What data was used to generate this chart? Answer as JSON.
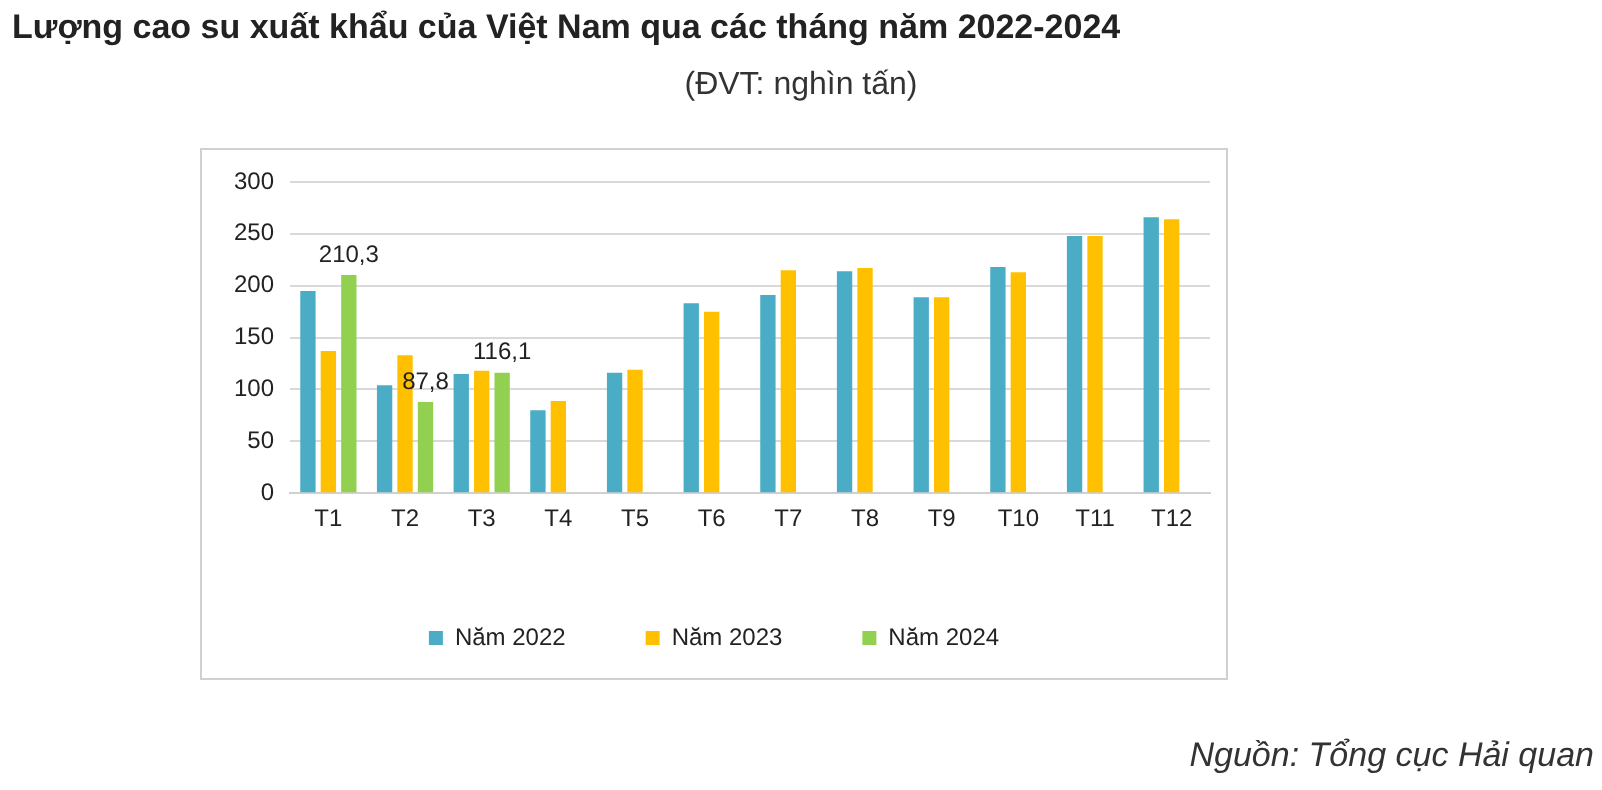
{
  "chart_data": {
    "type": "bar",
    "title": "Lượng cao su xuất khẩu của Việt Nam qua các tháng năm 2022-2024",
    "subtitle": "(ĐVT: nghìn tấn)",
    "categories": [
      "T1",
      "T2",
      "T3",
      "T4",
      "T5",
      "T6",
      "T7",
      "T8",
      "T9",
      "T10",
      "T11",
      "T12"
    ],
    "series": [
      {
        "name": "Năm 2022",
        "color": "#4bacc6",
        "values": [
          195,
          104,
          115,
          80,
          116,
          183,
          191,
          214,
          189,
          218,
          248,
          266
        ]
      },
      {
        "name": "Năm 2023",
        "color": "#ffc000",
        "values": [
          137,
          133,
          118,
          89,
          119,
          175,
          215,
          217,
          189,
          213,
          248,
          264
        ]
      },
      {
        "name": "Năm 2024",
        "color": "#92d050",
        "values": [
          210.3,
          87.8,
          116.1,
          null,
          null,
          null,
          null,
          null,
          null,
          null,
          null,
          null
        ],
        "value_labels": [
          "210,3",
          "87,8",
          "116,1",
          null,
          null,
          null,
          null,
          null,
          null,
          null,
          null,
          null
        ]
      }
    ],
    "ylim": [
      0,
      300
    ],
    "yticks": [
      0,
      50,
      100,
      150,
      200,
      250,
      300
    ],
    "grid": "y",
    "legend": "bottom",
    "annotations": [
      "Nguồn: Tổng cục Hải quan"
    ]
  }
}
